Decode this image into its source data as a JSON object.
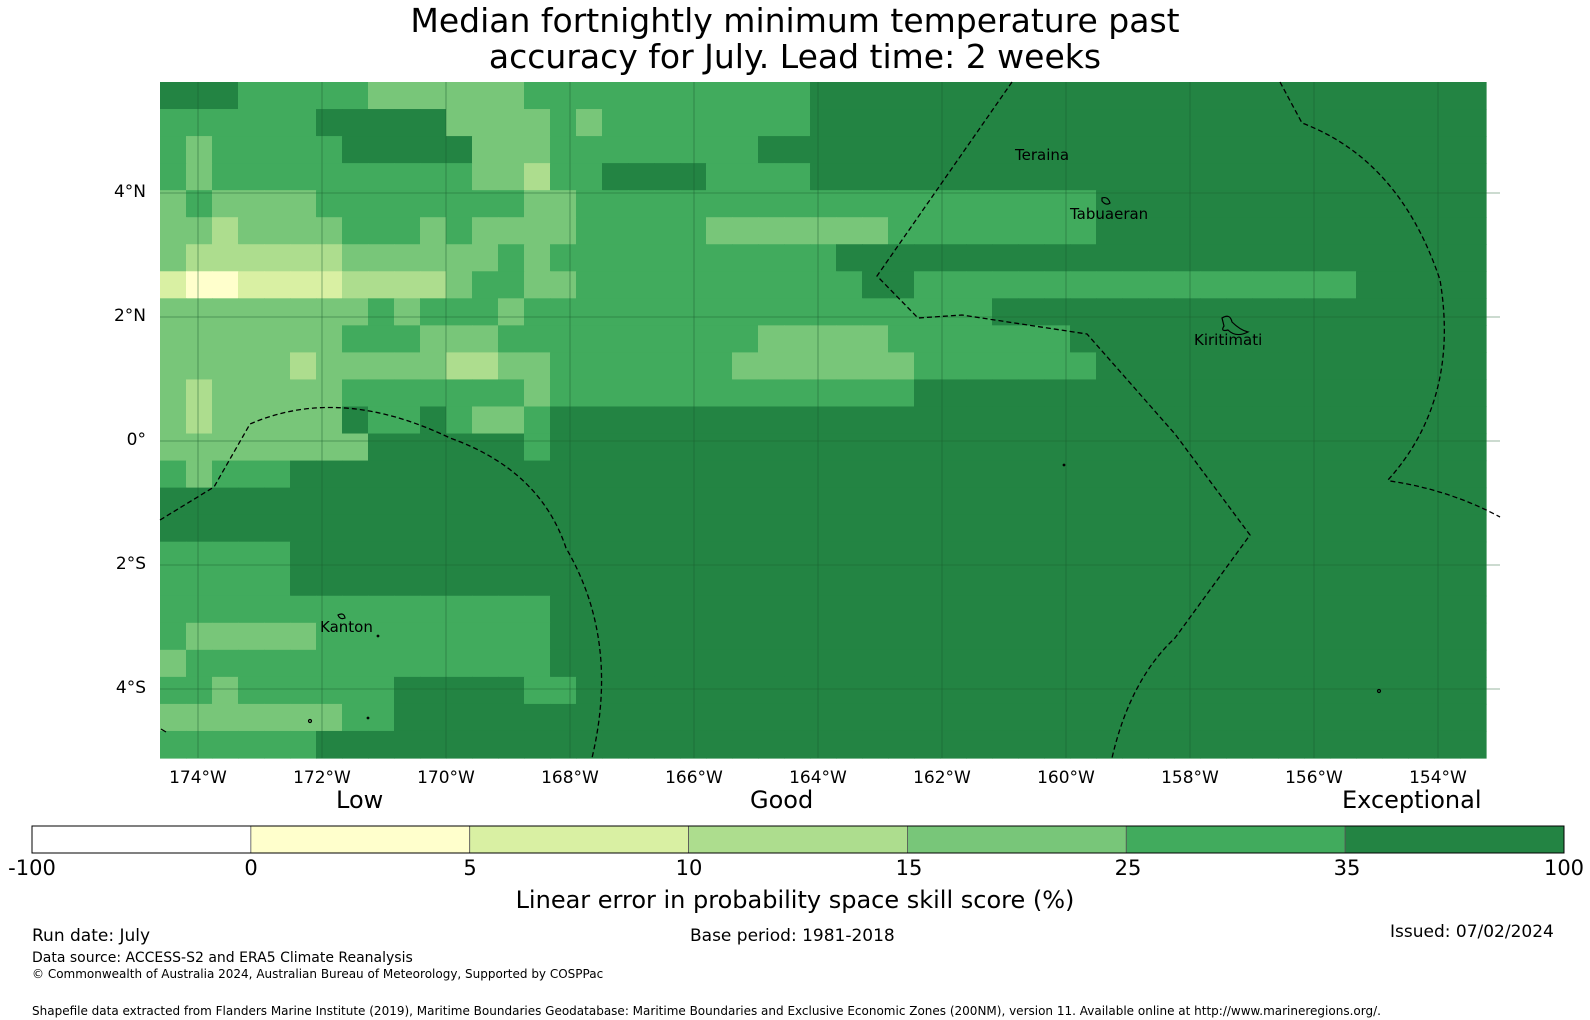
{
  "title_line1": "Median fortnightly minimum temperature past",
  "title_line2": "accuracy for July. Lead time: 2 weeks",
  "map": {
    "lat_labels": [
      "4°N",
      "2°N",
      "0°",
      "2°S",
      "4°S"
    ],
    "lon_labels": [
      "174°W",
      "172°W",
      "170°W",
      "168°W",
      "166°W",
      "164°W",
      "162°W",
      "160°W",
      "158°W",
      "156°W",
      "154°W"
    ],
    "places": [
      {
        "name": "Teraina"
      },
      {
        "name": "Tabuaeran"
      },
      {
        "name": "Kiritimati"
      },
      {
        "name": "Kanton"
      }
    ],
    "grid_colors": [
      "#ffffff",
      "#ffffcc",
      "#d9f0a3",
      "#addd8e",
      "#78c679",
      "#41ab5d",
      "#238443"
    ],
    "grid": [
      "666555554444445555555555566666666666666666666666666",
      "555555666664444545555555566666666666666666666666666",
      "545555566666444555555556666666666666666666666666666",
      "545555555555443556666555566666666666666666666666666",
      "454444555555554455555555555555555555666666666666666",
      "443444455545444455555444444455555555666666666666666",
      "433333344444454555555555556666666666666666666666666",
      "211222233334554455555555555665555555555555555566666",
      "444444445455545555555555555555556666666666666666666",
      "444444455544455555555554444455555556666666666666666",
      "444443444443344555555544444445555555666666666666666",
      "434444455555554555555555555556666666666666666666666",
      "434444465565445666666666666666666666666666666666666",
      "444444446666665666666666666666666666666666666666666",
      "545556666666666666666666666666666666666666666666666",
      "666666666666666666666666666666666666666666666666666",
      "666666666666666666666666666666666666666666666666666",
      "555556666666666666666666666666666666666666666666666",
      "555556666666666666666666666666666666666666666666666",
      "555555555555555666666666666666666666666666666666666",
      "544444555555555666666666666666666666666666666666666",
      "455555555555555666666666666666666666666666666666666",
      "554555555666665566666666666666666666666666666666666",
      "444444455666666666666666666666666666666666666666666",
      "555555666666666666666666666666666666666666666666666"
    ]
  },
  "colorbar": {
    "category_labels": [
      "Low",
      "Good",
      "Exceptional"
    ],
    "tick_labels": [
      "-100",
      "0",
      "5",
      "10",
      "15",
      "25",
      "35",
      "100"
    ],
    "colors": [
      "#ffffff",
      "#ffffcc",
      "#d9f0a3",
      "#addd8e",
      "#78c679",
      "#41ab5d",
      "#238443"
    ],
    "title": "Linear error in probability space skill score (%)"
  },
  "footer": {
    "run_date": "Run date: July",
    "base_period": "Base period: 1981-2018",
    "issued": "Issued: 07/02/2024",
    "data_source": "Data source: ACCESS-S2 and ERA5 Climate Reanalysis",
    "copyright": "© Commonwealth of Australia 2024, Australian Bureau of Meteorology, Supported by COSPPac",
    "shapefile": "Shapefile data extracted from Flanders Marine Institute (2019), Maritime Boundaries Geodatabase: Maritime Boundaries and Exclusive Economic Zones (200NM), version 11. Available online at http://www.marineregions.org/."
  }
}
